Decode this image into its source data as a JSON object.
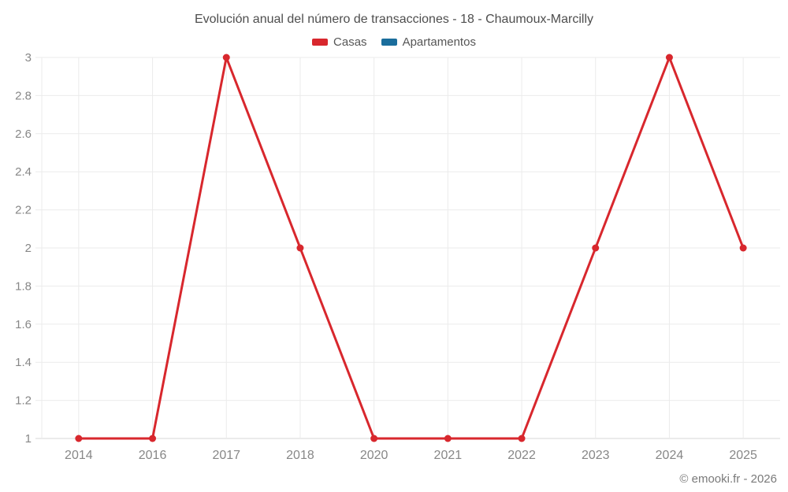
{
  "chart_data": {
    "type": "line",
    "title": "Evolución anual del número de transacciones - 18 - Chaumoux-Marcilly",
    "categories": [
      "2014",
      "2016",
      "2017",
      "2018",
      "2020",
      "2021",
      "2022",
      "2023",
      "2024",
      "2025"
    ],
    "series": [
      {
        "name": "Casas",
        "color": "#d8272d",
        "values": [
          1,
          1,
          3,
          2,
          1,
          1,
          1,
          2,
          3,
          2
        ]
      },
      {
        "name": "Apartamentos",
        "color": "#1a6d9c",
        "values": []
      }
    ],
    "xlabel": "",
    "ylabel": "",
    "ylim": [
      1,
      3
    ],
    "ytick_step": 0.2,
    "ytick_labels": [
      "1",
      "1.2",
      "1.4",
      "1.6",
      "1.8",
      "2",
      "2.2",
      "2.4",
      "2.6",
      "2.8",
      "3"
    ],
    "grid": true,
    "legend_position": "top",
    "marker_radius": 4.5,
    "line_width": 3
  },
  "footer": {
    "text": "© emooki.fr - 2026"
  },
  "colors": {
    "title_text": "#4e4e4e",
    "legend_text": "#565656",
    "axis_label_text": "#878787",
    "grid_line": "#ebebeb",
    "axis_line": "#d7d7d7",
    "background": "#ffffff"
  }
}
